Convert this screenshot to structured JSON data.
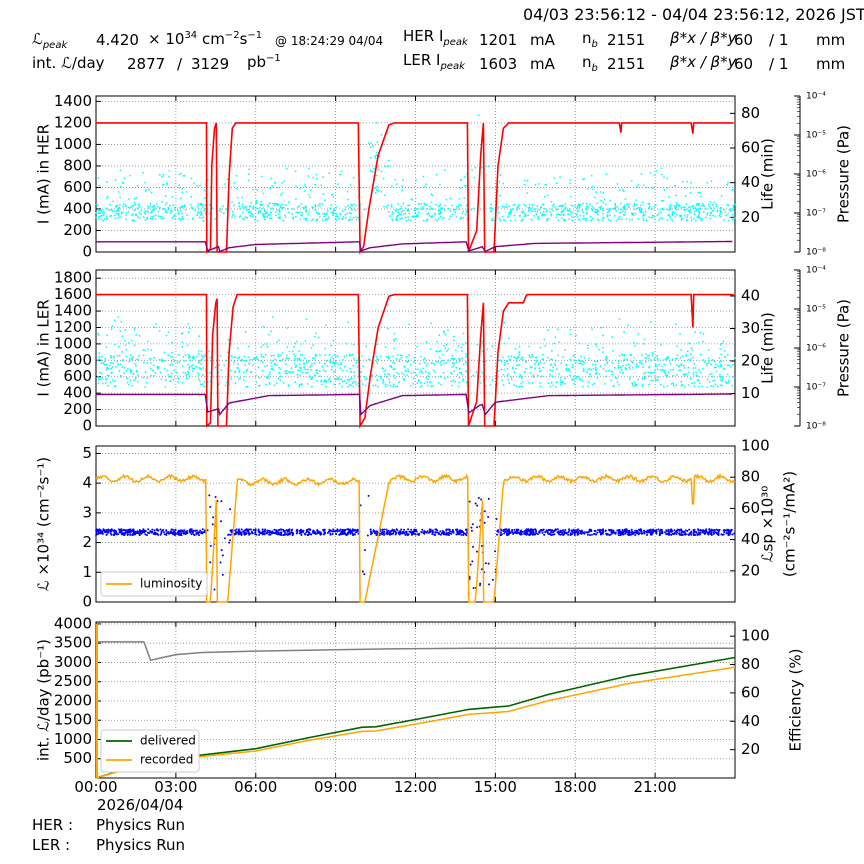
{
  "header": {
    "date_range": "04/03 23:56:12 - 04/04 23:56:12, 2026 JST",
    "lpeak_label": "ℒ",
    "lpeak_sub": "peak",
    "lpeak_value": "4.420",
    "lpeak_unit": "× 10",
    "lpeak_exp": "34",
    "lpeak_unit2": "cm",
    "lpeak_unit2_exp": "−2",
    "lpeak_unit3": "s",
    "lpeak_unit3_exp": "−1",
    "lpeak_time": "@ 18:24:29 04/04",
    "intl_label": "int. ℒ/day",
    "intl_value": "2877",
    "intl_sep": "/",
    "intl_value2": "3129",
    "intl_unit": "pb",
    "intl_unit_exp": "−1",
    "her_ipeak_label": "HER I",
    "her_ipeak_sub": "peak",
    "her_ipeak_value": "1201",
    "her_ipeak_unit": "mA",
    "ler_ipeak_label": "LER I",
    "ler_ipeak_sub": "peak",
    "ler_ipeak_value": "1603",
    "ler_ipeak_unit": "mA",
    "nb_label": "n",
    "nb_sub": "b",
    "her_nb": "2151",
    "ler_nb": "2151",
    "beta_label": "β*x / β*y",
    "her_beta_x": "60",
    "her_beta_y": "/ 1",
    "ler_beta_x": "60",
    "ler_beta_y": "/ 1",
    "beta_unit": "mm"
  },
  "footer": {
    "her_label": "HER :",
    "her_status": "Physics Run",
    "ler_label": "LER :",
    "ler_status": "Physics Run"
  },
  "colors": {
    "current": "#ff0000",
    "life": "#00ffff",
    "pressure": "#800080",
    "luminosity": "#ffa500",
    "specific": "#0000ff",
    "delivered": "#006400",
    "recorded": "#ffa500",
    "efficiency": "#808080"
  },
  "chart_data": [
    {
      "type": "line",
      "id": "her",
      "ylabel_left": "I (mA) in HER",
      "ylabel_right": "Life (min)",
      "ylabel_right2": "Pressure (Pa)",
      "ylim": [
        0,
        1450
      ],
      "yticks": [
        0,
        200,
        400,
        600,
        800,
        1000,
        1200,
        1400
      ],
      "ylim_right": [
        0,
        90
      ],
      "yticks_right": [
        20,
        40,
        60,
        80
      ],
      "pressure_ticks": [
        "10⁻⁴",
        "10⁻⁵",
        "10⁻⁶",
        "10⁻⁷",
        "10⁻⁸"
      ],
      "series": [
        {
          "key": "current",
          "x": [
            0,
            4.15,
            4.2,
            4.35,
            4.5,
            4.6,
            4.95,
            5.0,
            5.1,
            9.9,
            9.95,
            10.0,
            10.2,
            10.6,
            11.0,
            11.2,
            13.97,
            14.0,
            14.3,
            14.55,
            14.65,
            14.9,
            14.95,
            15.2,
            15.5,
            15.8,
            24
          ]
        },
        {
          "key": "pressure"
        }
      ]
    },
    {
      "type": "line",
      "id": "ler",
      "ylabel_left": "I (mA) in LER",
      "ylabel_right": "Life (min)",
      "ylabel_right2": "Pressure (Pa)",
      "ylim": [
        0,
        1900
      ],
      "yticks": [
        0,
        200,
        400,
        600,
        800,
        1000,
        1200,
        1400,
        1600,
        1800
      ],
      "ylim_right": [
        0,
        48
      ],
      "yticks_right": [
        10,
        20,
        30,
        40
      ],
      "pressure_ticks": [
        "10⁻⁴",
        "10⁻⁵",
        "10⁻⁶",
        "10⁻⁷",
        "10⁻⁸"
      ]
    },
    {
      "type": "line",
      "id": "lum",
      "ylabel_left": "ℒ ×10³⁴ (cm⁻²s⁻¹)",
      "ylabel_right": "ℒsp ×10³⁰",
      "ylabel_right2": "(cm⁻²s⁻¹/mA²)",
      "ylim": [
        0,
        5.25
      ],
      "yticks": [
        0,
        1,
        2,
        3,
        4,
        5
      ],
      "ylim_right": [
        0,
        100
      ],
      "yticks_right": [
        20,
        40,
        60,
        80,
        100
      ],
      "legend": [
        "luminosity"
      ]
    },
    {
      "type": "line",
      "id": "int",
      "ylabel_left": "int. ℒ/day (pb⁻¹)",
      "ylabel_right": "Efficiency (%)",
      "ylim": [
        0,
        4050
      ],
      "yticks": [
        500,
        1000,
        1500,
        2000,
        2500,
        3000,
        3500,
        4000
      ],
      "ylim_right": [
        0,
        110
      ],
      "yticks_right": [
        20,
        40,
        60,
        80,
        100
      ],
      "legend": [
        "delivered",
        "recorded"
      ],
      "delivered": {
        "x": [
          0,
          2,
          4,
          5,
          6,
          8,
          10,
          10.5,
          12,
          14,
          15,
          15.5,
          17,
          20,
          24
        ],
        "y": [
          0,
          420,
          600,
          680,
          760,
          1050,
          1320,
          1330,
          1520,
          1780,
          1840,
          1870,
          2170,
          2650,
          3129
        ]
      },
      "recorded": {
        "x": [
          0,
          2,
          4,
          5,
          6,
          8,
          10,
          10.5,
          12,
          14,
          15,
          15.5,
          17,
          20,
          24
        ],
        "y": [
          0,
          390,
          560,
          630,
          700,
          980,
          1210,
          1220,
          1400,
          1650,
          1700,
          1730,
          2010,
          2450,
          2877
        ]
      },
      "efficiency": {
        "x": [
          0,
          1.8,
          2.05,
          2.5,
          3,
          4,
          6,
          9,
          11,
          14,
          16,
          20,
          24
        ],
        "y": [
          96,
          96,
          83,
          85,
          87,
          88.5,
          89.5,
          90.5,
          91,
          91.5,
          91.5,
          91.5,
          91.5
        ]
      }
    }
  ],
  "xaxis": {
    "ticks": [
      "00:00",
      "03:00",
      "06:00",
      "09:00",
      "12:00",
      "15:00",
      "18:00",
      "21:00"
    ],
    "date": "2026/04/04"
  }
}
